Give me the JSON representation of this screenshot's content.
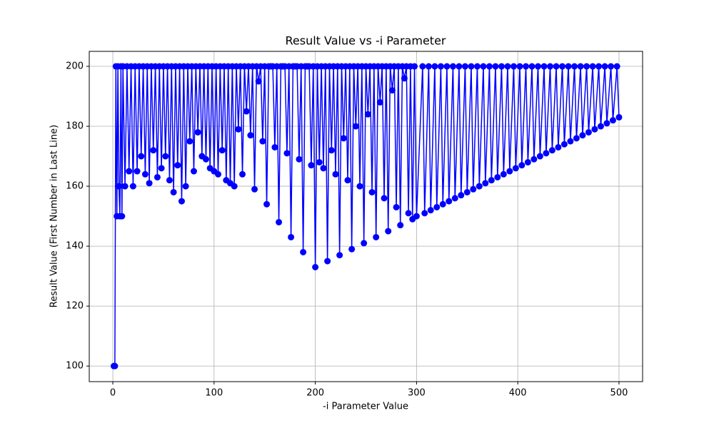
{
  "chart_data": {
    "type": "line",
    "title": "Result Value vs -i Parameter",
    "x_label": "-i Parameter Value",
    "y_label": "Result Value (First Number in Last Line)",
    "xlim": [
      -23.3,
      523.3
    ],
    "ylim": [
      94.8,
      205
    ],
    "xticks": [
      0,
      100,
      200,
      300,
      400,
      500
    ],
    "yticks": [
      100,
      120,
      140,
      160,
      180,
      200
    ],
    "grid": true,
    "series": [
      {
        "color": "#0000ff",
        "x": [
          1,
          2,
          3,
          4,
          5,
          6,
          7,
          8,
          9,
          10,
          12,
          14,
          16,
          18,
          20,
          22,
          24,
          26,
          28,
          30,
          32,
          34,
          36,
          38,
          40,
          42,
          44,
          46,
          48,
          50,
          52,
          54,
          56,
          58,
          60,
          62,
          64,
          66,
          68,
          70,
          72,
          74,
          76,
          78,
          80,
          82,
          84,
          86,
          88,
          90,
          92,
          94,
          96,
          98,
          100,
          102,
          104,
          106,
          108,
          110,
          112,
          114,
          116,
          118,
          120,
          122,
          124,
          126,
          128,
          130,
          132,
          134,
          136,
          138,
          140,
          142,
          144,
          146,
          148,
          150,
          152,
          154,
          156,
          158,
          160,
          162,
          164,
          166,
          168,
          170,
          172,
          174,
          176,
          178,
          180,
          182,
          184,
          186,
          188,
          190,
          192,
          194,
          196,
          198,
          200,
          202,
          204,
          206,
          208,
          210,
          212,
          214,
          216,
          218,
          220,
          222,
          224,
          226,
          228,
          230,
          232,
          234,
          236,
          238,
          240,
          242,
          244,
          246,
          248,
          250,
          252,
          254,
          256,
          258,
          260,
          262,
          264,
          266,
          268,
          270,
          272,
          274,
          276,
          278,
          280,
          282,
          284,
          286,
          288,
          290,
          292,
          294,
          296,
          298,
          300,
          306,
          308,
          312,
          314,
          318,
          320,
          324,
          326,
          330,
          332,
          336,
          338,
          342,
          344,
          348,
          350,
          354,
          356,
          360,
          362,
          366,
          368,
          372,
          374,
          378,
          380,
          384,
          386,
          390,
          392,
          396,
          398,
          402,
          404,
          408,
          410,
          414,
          416,
          420,
          422,
          426,
          428,
          432,
          434,
          438,
          440,
          444,
          446,
          450,
          452,
          456,
          458,
          462,
          464,
          468,
          470,
          474,
          476,
          480,
          482,
          486,
          488,
          492,
          494,
          498,
          500
        ],
        "values": [
          100,
          100,
          200,
          150,
          200,
          160,
          150,
          200,
          150,
          200,
          160,
          200,
          165,
          200,
          160,
          200,
          165,
          200,
          170,
          200,
          164,
          200,
          161,
          200,
          172,
          200,
          163,
          200,
          166,
          200,
          170,
          200,
          162,
          200,
          158,
          200,
          167,
          200,
          155,
          200,
          160,
          200,
          175,
          200,
          165,
          200,
          178,
          200,
          170,
          200,
          169,
          200,
          166,
          200,
          165,
          200,
          164,
          200,
          172,
          200,
          162,
          200,
          161,
          200,
          160,
          200,
          179,
          200,
          164,
          200,
          185,
          200,
          177,
          200,
          159,
          200,
          195,
          200,
          175,
          200,
          154,
          200,
          200,
          200,
          173,
          200,
          148,
          200,
          200,
          200,
          171,
          200,
          143,
          200,
          200,
          200,
          169,
          200,
          138,
          200,
          200,
          200,
          167,
          200,
          133,
          200,
          168,
          200,
          166,
          200,
          135,
          200,
          172,
          200,
          164,
          200,
          137,
          200,
          176,
          200,
          162,
          200,
          139,
          200,
          180,
          200,
          160,
          200,
          141,
          200,
          184,
          200,
          158,
          200,
          143,
          200,
          188,
          200,
          156,
          200,
          145,
          200,
          192,
          200,
          153,
          200,
          147,
          200,
          196,
          200,
          151,
          200,
          149,
          200,
          150,
          200,
          151,
          200,
          152,
          200,
          153,
          200,
          154,
          200,
          155,
          200,
          156,
          200,
          157,
          200,
          158,
          200,
          159,
          200,
          160,
          200,
          161,
          200,
          162,
          200,
          163,
          200,
          164,
          200,
          165,
          200,
          166,
          200,
          167,
          200,
          168,
          200,
          169,
          200,
          170,
          200,
          171,
          200,
          172,
          200,
          173,
          200,
          174,
          200,
          175,
          200,
          176,
          200,
          177,
          200,
          178,
          200,
          179,
          200,
          180,
          200,
          181,
          200,
          182,
          200,
          183
        ]
      }
    ]
  }
}
